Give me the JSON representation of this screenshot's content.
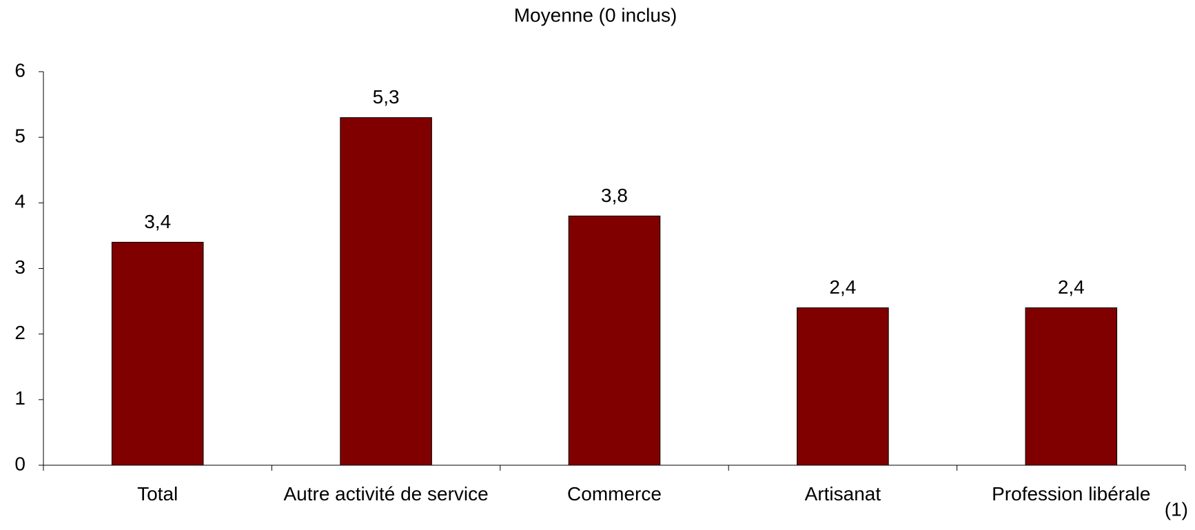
{
  "chart_data": {
    "type": "bar",
    "title": "Moyenne (0 inclus)",
    "categories": [
      "Total",
      "Autre activité de service",
      "Commerce",
      "Artisanat",
      "Profession libérale"
    ],
    "values": [
      3.4,
      5.3,
      3.8,
      2.4,
      2.4
    ],
    "value_labels": [
      "3,4",
      "5,3",
      "3,8",
      "2,4",
      "2,4"
    ],
    "color": "#800000",
    "ylim": [
      0,
      6
    ],
    "yticks": [
      0,
      1,
      2,
      3,
      4,
      5,
      6
    ],
    "grid": false,
    "annotation": "(1)"
  }
}
